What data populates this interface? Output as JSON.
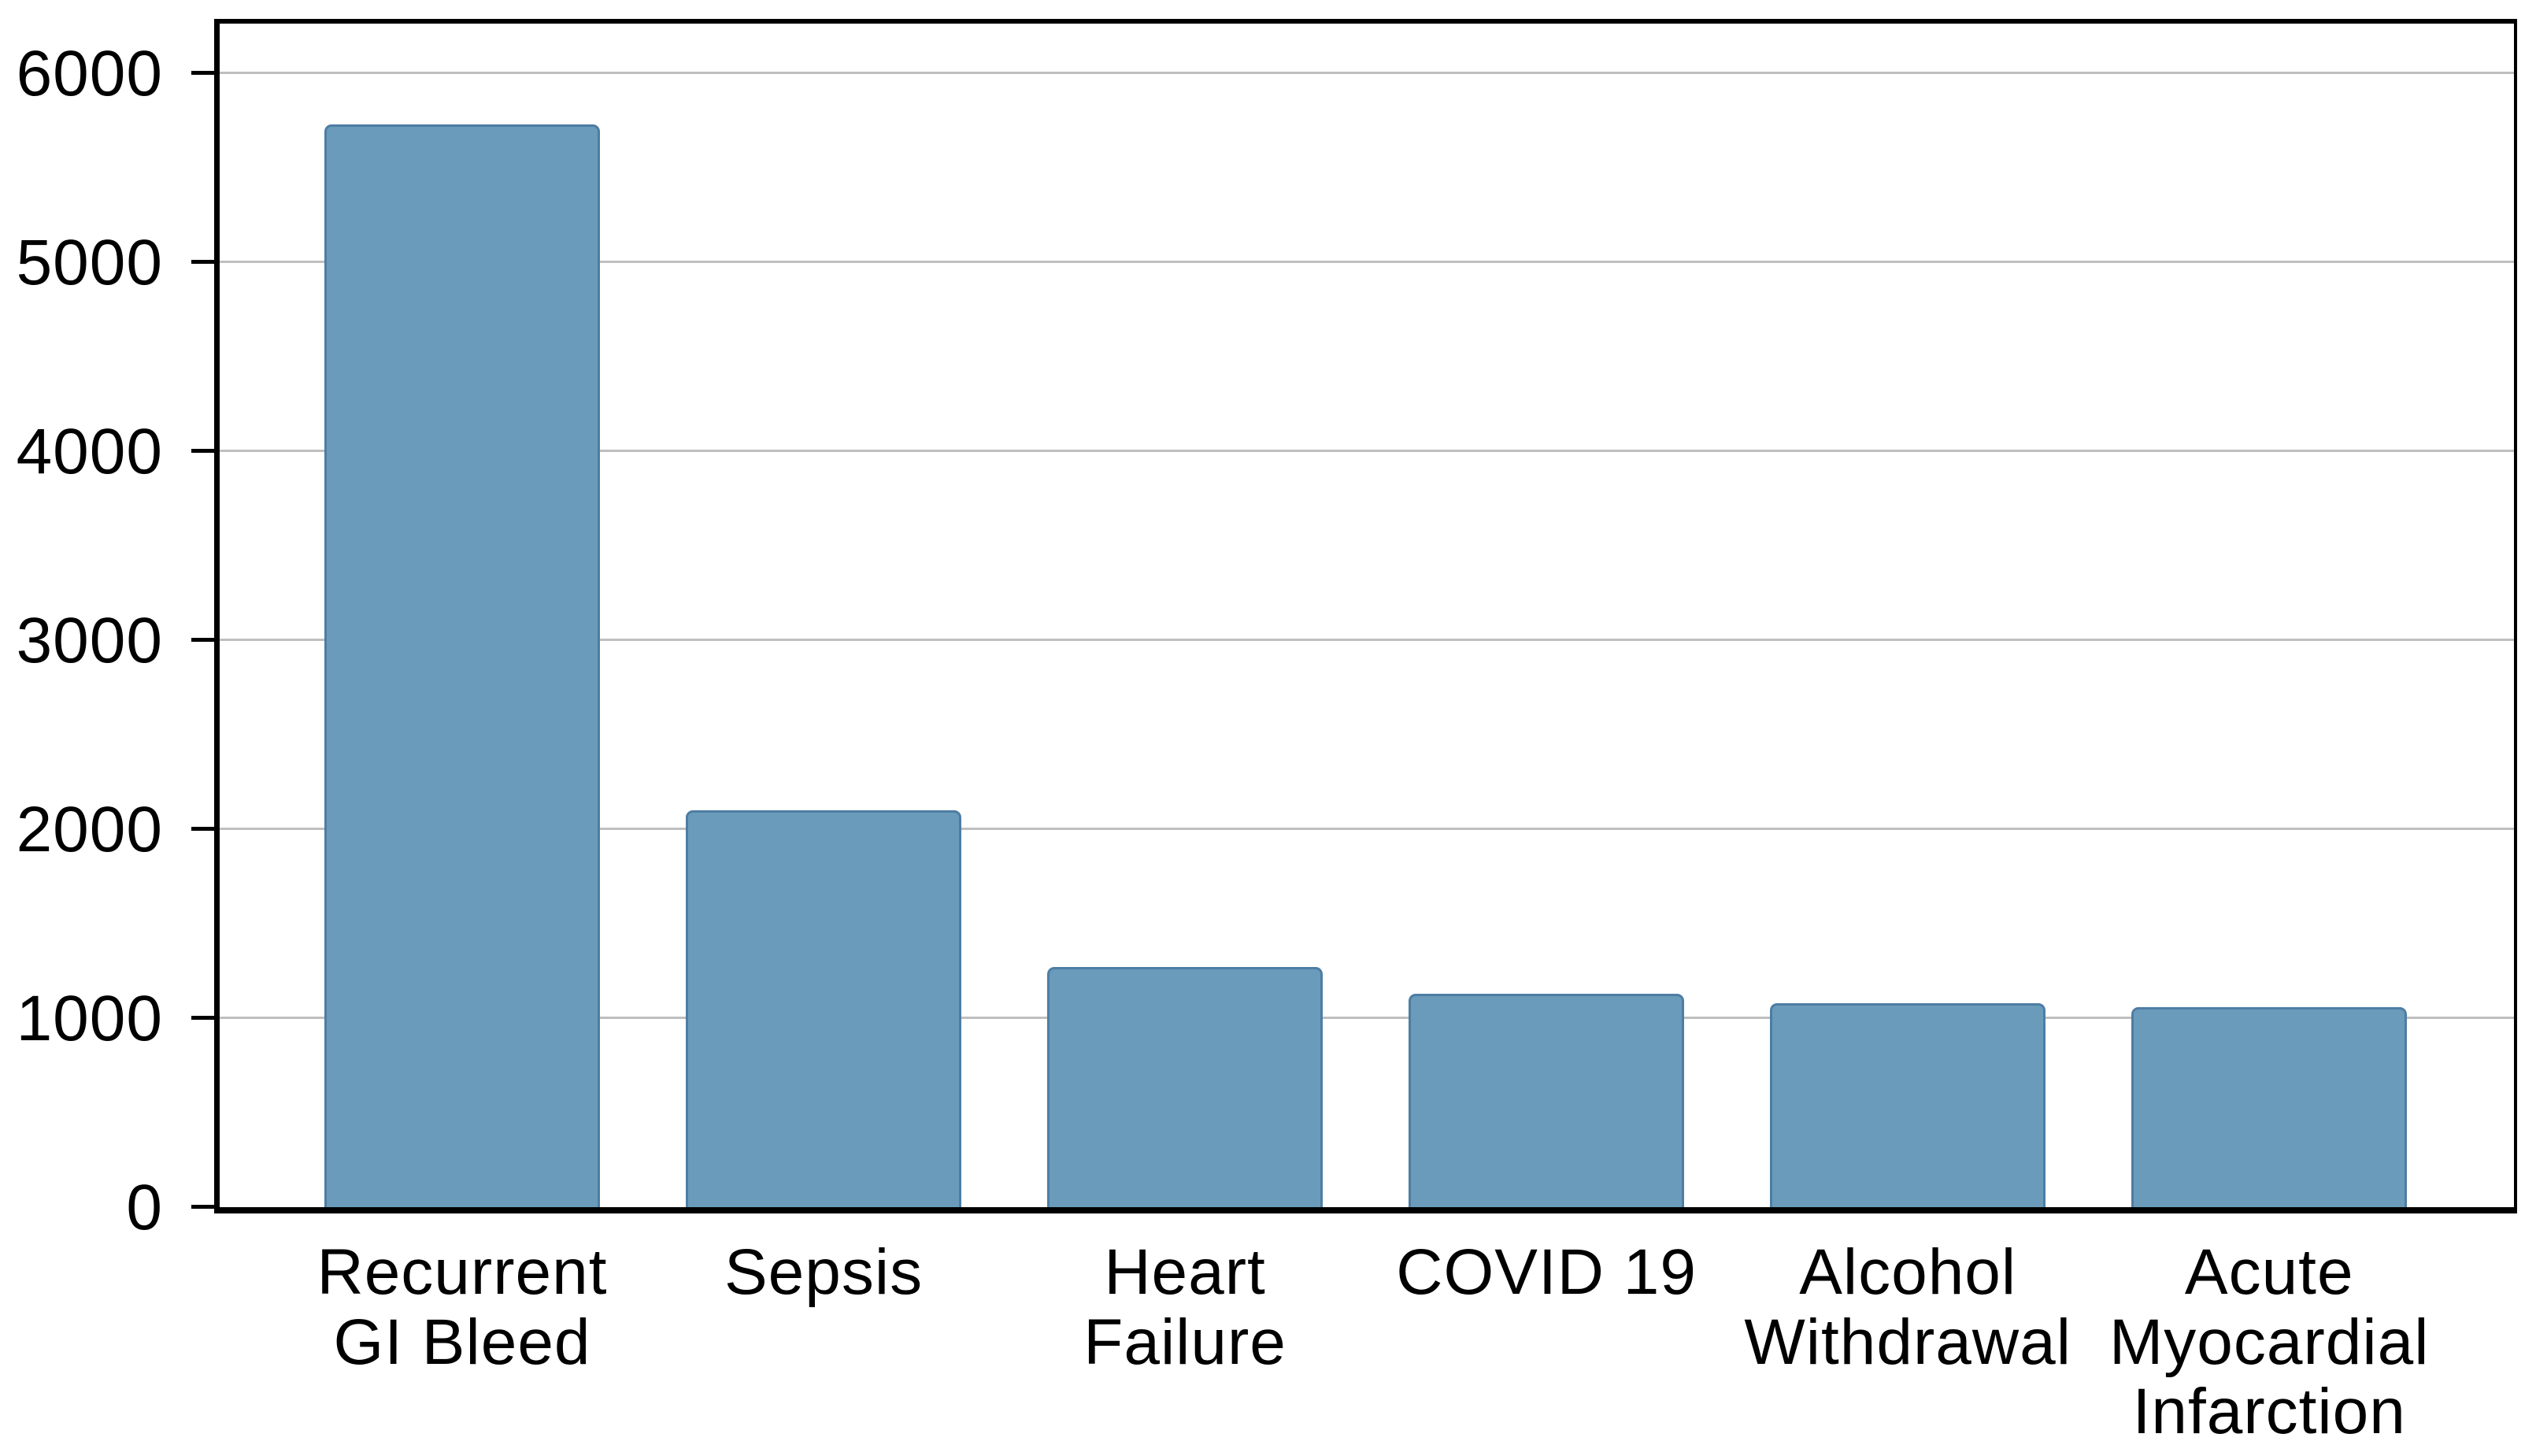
{
  "chart_data": {
    "type": "bar",
    "title": "",
    "xlabel": "",
    "ylabel": "",
    "categories": [
      "Recurrent\nGI Bleed",
      "Sepsis",
      "Heart\nFailure",
      "COVID 19",
      "Alcohol\nWithdrawal",
      "Acute\nMyocardial\nInfarction"
    ],
    "values": [
      5730,
      2100,
      1270,
      1130,
      1080,
      1060
    ],
    "yticks": [
      0,
      1000,
      2000,
      3000,
      4000,
      5000,
      6000
    ],
    "ylim": [
      0,
      6263
    ],
    "grid": true,
    "legend_position": "none",
    "colors": {
      "bar_fill": "#6A9BBA",
      "bar_border": "#4E7DA3",
      "gridline": "#BFBFBF",
      "axis": "#000000",
      "text": "#000000",
      "background": "#FFFFFF"
    }
  }
}
